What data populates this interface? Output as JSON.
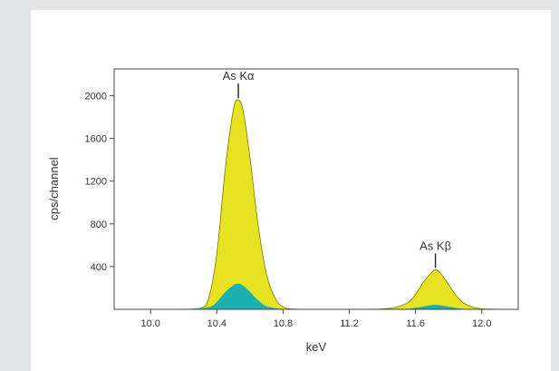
{
  "chart_data": {
    "type": "area",
    "title": "",
    "xlabel": "keV",
    "ylabel": "cps/channel",
    "xlim": [
      9.78,
      12.22
    ],
    "ylim": [
      0,
      2250
    ],
    "xticks": [
      10.0,
      10.4,
      10.8,
      11.2,
      11.6,
      12.0
    ],
    "xtick_labels": [
      "10.0",
      "10.4",
      "10.8",
      "11.2",
      "11.6",
      "12.0"
    ],
    "yticks": [
      400,
      800,
      1200,
      1600,
      2000
    ],
    "ytick_labels": [
      "400",
      "800",
      "1200",
      "1600",
      "2000"
    ],
    "grid": false,
    "legend": "none",
    "series": [
      {
        "color": "#e8e322",
        "x": [
          10.2,
          10.3,
          10.35,
          10.4,
          10.45,
          10.5,
          10.53,
          10.56,
          10.6,
          10.65,
          10.7,
          10.75,
          10.8,
          10.9,
          11.3,
          11.45,
          11.55,
          11.6,
          11.65,
          11.7,
          11.72,
          11.75,
          11.8,
          11.85,
          11.9,
          12.0,
          12.2
        ],
        "values": [
          0,
          10,
          100,
          520,
          1300,
          1870,
          1960,
          1850,
          1420,
          780,
          330,
          110,
          25,
          0,
          0,
          10,
          60,
          140,
          260,
          350,
          370,
          340,
          230,
          120,
          50,
          5,
          0
        ]
      },
      {
        "color": "#1cb0b0",
        "x": [
          10.2,
          10.35,
          10.4,
          10.45,
          10.5,
          10.53,
          10.56,
          10.6,
          10.65,
          10.7,
          10.8,
          10.9,
          11.45,
          11.55,
          11.6,
          11.65,
          11.7,
          11.72,
          11.75,
          11.8,
          11.85,
          11.9,
          12.0
        ],
        "values": [
          0,
          20,
          70,
          160,
          225,
          240,
          220,
          165,
          85,
          30,
          3,
          0,
          0,
          6,
          15,
          28,
          40,
          42,
          38,
          25,
          12,
          4,
          0
        ]
      }
    ],
    "annotations": [
      {
        "text": "As Kα",
        "x": 10.53,
        "y": 1960
      },
      {
        "text": "As Kβ",
        "x": 11.72,
        "y": 370
      }
    ]
  }
}
